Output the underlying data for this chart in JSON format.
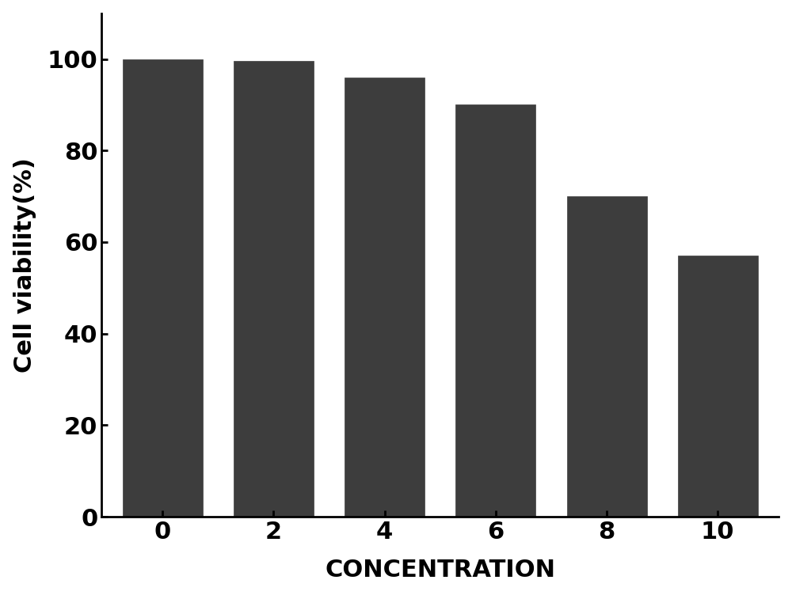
{
  "categories": [
    "0",
    "2",
    "4",
    "6",
    "8",
    "10"
  ],
  "values": [
    100,
    99.5,
    96,
    90,
    70,
    57
  ],
  "bar_color": "#3d3d3d",
  "bar_edge_color": "#3d3d3d",
  "xlabel": "CONCENTRATION",
  "ylabel": "Cell viability(%)",
  "ylim": [
    0,
    110
  ],
  "yticks": [
    0,
    20,
    40,
    60,
    80,
    100
  ],
  "bar_width": 0.72,
  "xlabel_fontsize": 22,
  "ylabel_fontsize": 22,
  "tick_fontsize": 22,
  "xlabel_fontweight": "bold",
  "ylabel_fontweight": "bold",
  "tick_fontweight": "bold",
  "background_color": "#ffffff",
  "spine_linewidth": 2.0,
  "tick_linewidth": 2.0,
  "figure_width": 10.0,
  "figure_height": 7.52
}
